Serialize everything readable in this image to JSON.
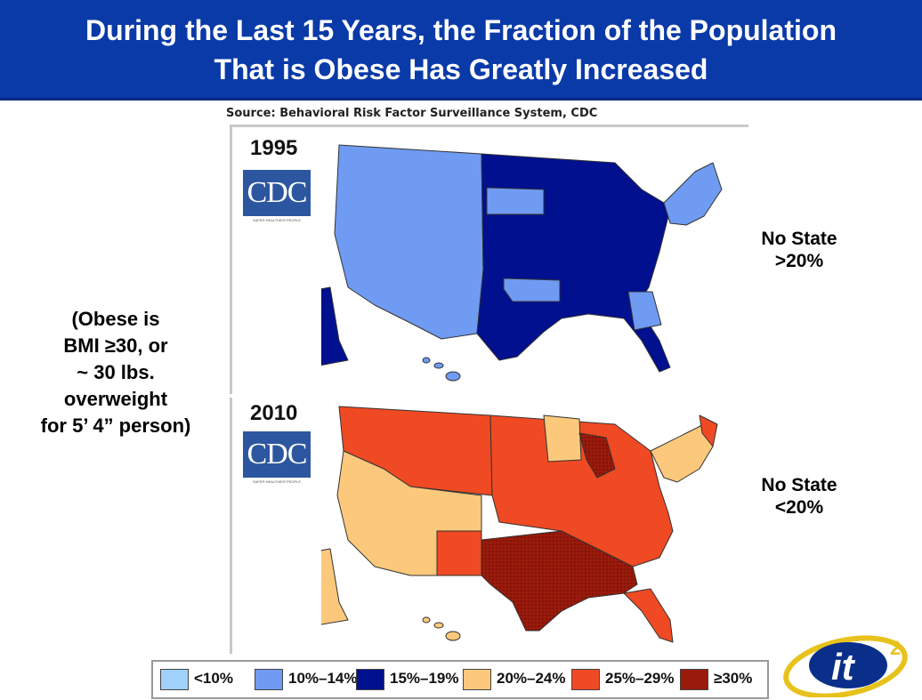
{
  "title": {
    "line1": "During the Last 15 Years, the Fraction of the Population",
    "line2": "That is Obese Has Greatly Increased"
  },
  "source": "Source: Behavioral Risk Factor Surveillance System, CDC",
  "maps": [
    {
      "year": "1995",
      "logo_text": "CDC",
      "logo_tagline": "SAFER·HEALTHIER·PEOPLE",
      "annotation": [
        "No State",
        ">20%"
      ],
      "region_categories": {
        "west": "10%–14%",
        "central_east": "15%–19%",
        "northeast": "10%–14%",
        "georgia": "10%–14%",
        "oklahoma": "10%–14%",
        "south_dakota": "10%–14%",
        "alaska": "15%–19%",
        "hawaii": "10%–14%"
      }
    },
    {
      "year": "2010",
      "logo_text": "CDC",
      "logo_tagline": "SAFER·HEALTHIER·PEOPLE",
      "annotation": [
        "No State",
        "<20%"
      ],
      "region_categories": {
        "west": "20%–24%",
        "central": "25%–29%",
        "south": "≥30%",
        "northeast": "20%–24%",
        "alaska": "20%–24%",
        "hawaii": "20%–24%"
      }
    }
  ],
  "left_note": [
    "(Obese is",
    "BMI ≥30, or",
    "~ 30 lbs.",
    "overweight",
    "for 5’ 4” person)"
  ],
  "legend": [
    {
      "label": "<10%",
      "color": "#9fd1fb"
    },
    {
      "label": "10%–14%",
      "color": "#6f9bf2"
    },
    {
      "label": "15%–19%",
      "color": "#00108f"
    },
    {
      "label": "20%–24%",
      "color": "#fcc97c"
    },
    {
      "label": "25%–29%",
      "color": "#ef4a23"
    },
    {
      "label": "≥30%",
      "color": "#9a1a0c"
    }
  ],
  "logo": {
    "text": "it",
    "superscript": "2"
  }
}
